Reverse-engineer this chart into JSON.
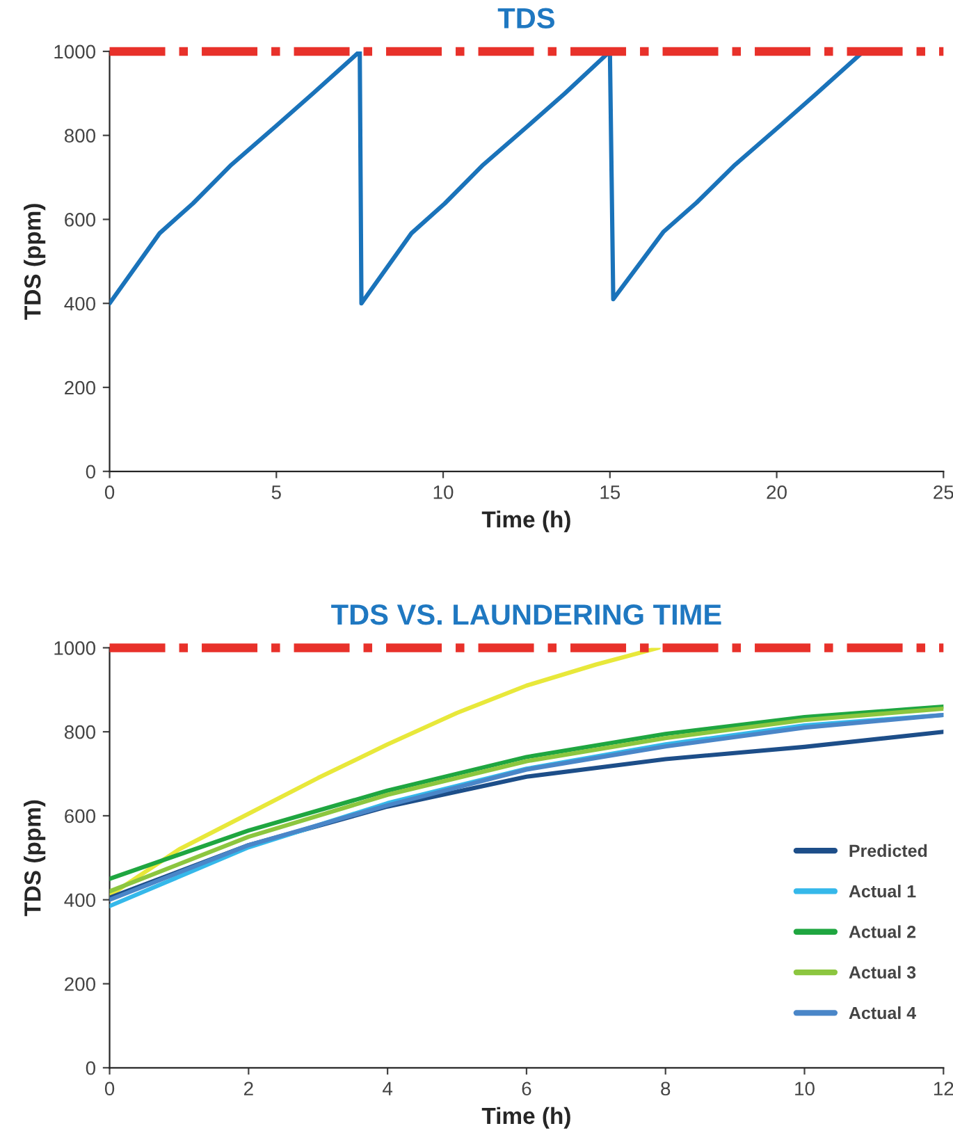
{
  "chart_data": [
    {
      "type": "line",
      "title": "TDS",
      "xlabel": "Time (h)",
      "ylabel": "TDS (ppm)",
      "xlim": [
        0,
        25
      ],
      "xticks": [
        0,
        5,
        10,
        15,
        20,
        25
      ],
      "ylim": [
        0,
        1000
      ],
      "yticks": [
        0,
        200,
        400,
        600,
        800,
        1000
      ],
      "grid": false,
      "legend": false,
      "ref_lines": [
        {
          "axis": "y",
          "value": 1000,
          "color": "#e8312a",
          "line_style": "dashdot"
        }
      ],
      "series": [
        {
          "color": "#1a73ba",
          "x": [
            0,
            1.5,
            2.5,
            3.65,
            5,
            6.1,
            7.5,
            7.55,
            9.05,
            10.05,
            11.2,
            12.55,
            13.65,
            15.0,
            15.1,
            16.6,
            17.6,
            18.75,
            20.1,
            21.2,
            22.6
          ],
          "values": [
            400,
            567,
            638,
            730,
            823,
            900,
            1000,
            400,
            567,
            638,
            730,
            823,
            900,
            1000,
            410,
            570,
            640,
            730,
            823,
            900,
            1000
          ]
        }
      ]
    },
    {
      "type": "line",
      "title": "TDS VS. LAUNDERING TIME",
      "xlabel": "Time (h)",
      "ylabel": "TDS (ppm)",
      "xlim": [
        0,
        12
      ],
      "xticks": [
        0,
        2,
        4,
        6,
        8,
        10,
        12
      ],
      "ylim": [
        0,
        1000
      ],
      "yticks": [
        0,
        200,
        400,
        600,
        800,
        1000
      ],
      "grid": false,
      "legend": "right",
      "ref_lines": [
        {
          "axis": "y",
          "value": 1000,
          "color": "#e8312a",
          "line_style": "dashdot"
        }
      ],
      "series": [
        {
          "color": "#e8e83a",
          "x": [
            0,
            1,
            2,
            3,
            4,
            5,
            6,
            7,
            7.9
          ],
          "values": [
            410,
            520,
            605,
            690,
            770,
            845,
            910,
            960,
            1000
          ]
        },
        {
          "name": "Predicted",
          "color": "#1d4e89",
          "x": [
            0,
            2,
            4,
            6,
            8,
            10,
            12
          ],
          "values": [
            405,
            530,
            622,
            693,
            735,
            764,
            800
          ]
        },
        {
          "name": "Actual 1",
          "color": "#35b8ea",
          "x": [
            0,
            2,
            4,
            6,
            8,
            10,
            12
          ],
          "values": [
            385,
            525,
            630,
            712,
            770,
            815,
            840
          ]
        },
        {
          "name": "Actual 2",
          "color": "#1fa640",
          "x": [
            0,
            2,
            4,
            6,
            8,
            10,
            12
          ],
          "values": [
            450,
            565,
            660,
            740,
            795,
            835,
            860
          ]
        },
        {
          "name": "Actual 3",
          "color": "#8cc63f",
          "x": [
            0,
            2,
            4,
            6,
            8,
            10,
            12
          ],
          "values": [
            420,
            550,
            650,
            730,
            785,
            828,
            855
          ]
        },
        {
          "name": "Actual 4",
          "color": "#4a86c8",
          "x": [
            0,
            2,
            4,
            6,
            8,
            10,
            12
          ],
          "values": [
            400,
            530,
            625,
            710,
            765,
            810,
            840
          ]
        }
      ]
    }
  ]
}
